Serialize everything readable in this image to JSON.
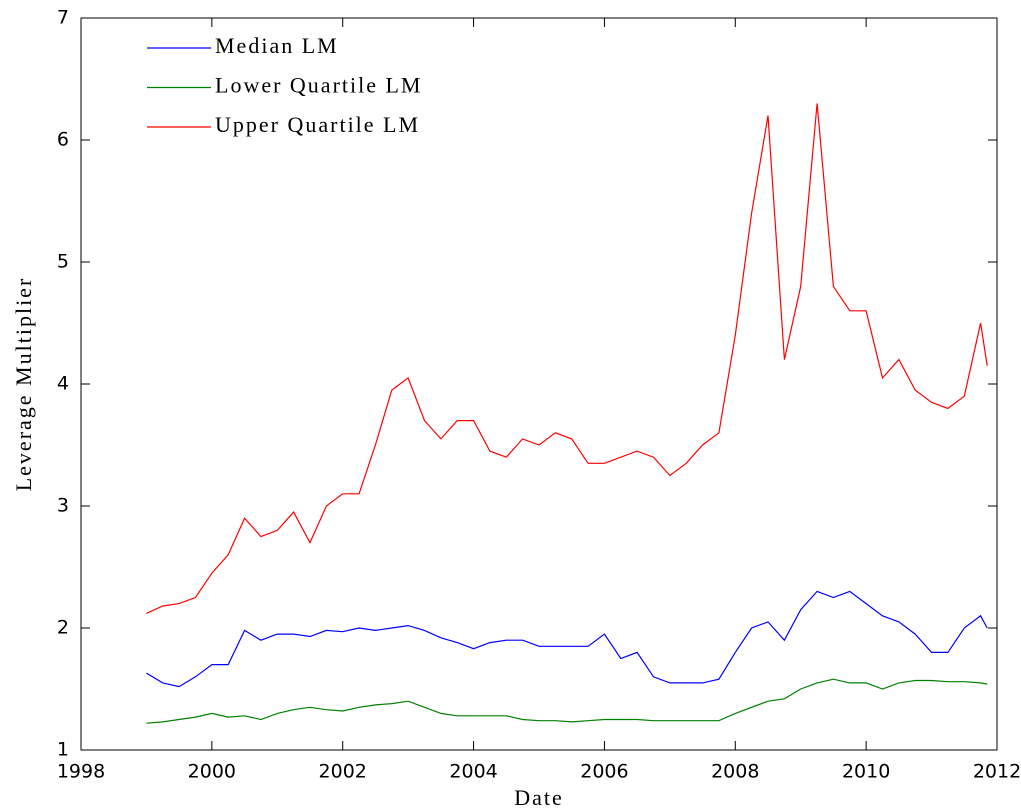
{
  "chart_data": {
    "type": "line",
    "xlabel": "Date",
    "ylabel": "Leverage Multiplier",
    "x": [
      1999.0,
      1999.25,
      1999.5,
      1999.75,
      2000.0,
      2000.25,
      2000.5,
      2000.75,
      2001.0,
      2001.25,
      2001.5,
      2001.75,
      2002.0,
      2002.25,
      2002.5,
      2002.75,
      2003.0,
      2003.25,
      2003.5,
      2003.75,
      2004.0,
      2004.25,
      2004.5,
      2004.75,
      2005.0,
      2005.25,
      2005.5,
      2005.75,
      2006.0,
      2006.25,
      2006.5,
      2006.75,
      2007.0,
      2007.25,
      2007.5,
      2007.75,
      2008.0,
      2008.25,
      2008.5,
      2008.75,
      2009.0,
      2009.25,
      2009.5,
      2009.75,
      2010.0,
      2010.25,
      2010.5,
      2010.75,
      2011.0,
      2011.25,
      2011.5,
      2011.75,
      2011.85
    ],
    "series": [
      {
        "name": "Median LM",
        "color": "#0000ff",
        "values": [
          1.63,
          1.55,
          1.52,
          1.6,
          1.7,
          1.7,
          1.98,
          1.9,
          1.95,
          1.95,
          1.93,
          1.98,
          1.97,
          2.0,
          1.98,
          2.0,
          2.02,
          1.98,
          1.92,
          1.88,
          1.83,
          1.88,
          1.9,
          1.9,
          1.85,
          1.85,
          1.85,
          1.85,
          1.95,
          1.75,
          1.8,
          1.6,
          1.55,
          1.55,
          1.55,
          1.58,
          1.8,
          2.0,
          2.05,
          1.9,
          2.15,
          2.3,
          2.25,
          2.3,
          2.2,
          2.1,
          2.05,
          1.95,
          1.8,
          1.8,
          2.0,
          2.1,
          2.0
        ]
      },
      {
        "name": "Lower Quartile LM",
        "color": "#008000",
        "values": [
          1.22,
          1.23,
          1.25,
          1.27,
          1.3,
          1.27,
          1.28,
          1.25,
          1.3,
          1.33,
          1.35,
          1.33,
          1.32,
          1.35,
          1.37,
          1.38,
          1.4,
          1.35,
          1.3,
          1.28,
          1.28,
          1.28,
          1.28,
          1.25,
          1.24,
          1.24,
          1.23,
          1.24,
          1.25,
          1.25,
          1.25,
          1.24,
          1.24,
          1.24,
          1.24,
          1.24,
          1.3,
          1.35,
          1.4,
          1.42,
          1.5,
          1.55,
          1.58,
          1.55,
          1.55,
          1.5,
          1.55,
          1.57,
          1.57,
          1.56,
          1.56,
          1.55,
          1.54
        ]
      },
      {
        "name": "Upper Quartile LM",
        "color": "#ff0000",
        "values": [
          2.12,
          2.18,
          2.2,
          2.25,
          2.45,
          2.6,
          2.9,
          2.75,
          2.8,
          2.95,
          2.7,
          3.0,
          3.1,
          3.1,
          3.5,
          3.95,
          4.05,
          3.7,
          3.55,
          3.7,
          3.7,
          3.45,
          3.4,
          3.55,
          3.5,
          3.6,
          3.55,
          3.35,
          3.35,
          3.4,
          3.45,
          3.4,
          3.25,
          3.35,
          3.5,
          3.6,
          4.4,
          5.4,
          6.2,
          4.2,
          4.8,
          6.3,
          4.8,
          4.6,
          4.6,
          4.05,
          4.2,
          3.95,
          3.85,
          3.8,
          3.9,
          4.5,
          4.15
        ]
      }
    ],
    "xlim": [
      1998,
      2012
    ],
    "xticks": [
      1998,
      2000,
      2002,
      2004,
      2006,
      2008,
      2010,
      2012
    ],
    "ylim": [
      1,
      7
    ],
    "yticks": [
      1,
      2,
      3,
      4,
      5,
      6,
      7
    ],
    "legend": "upper-left"
  }
}
